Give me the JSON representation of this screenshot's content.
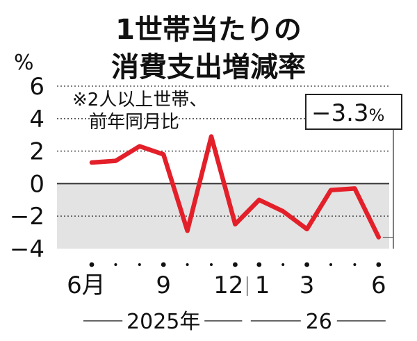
{
  "chart_data": {
    "type": "line",
    "title_lines": [
      "1世帯当たりの",
      "消費支出増減率"
    ],
    "unit": "%",
    "note_lines": [
      "※2人以上世帯、",
      "前年同月比"
    ],
    "callout": {
      "value": "−3.3",
      "unit": "%"
    },
    "ylim": [
      -4,
      6
    ],
    "yticks": [
      {
        "value": 6,
        "label": "6"
      },
      {
        "value": 4,
        "label": "4"
      },
      {
        "value": 2,
        "label": "2"
      },
      {
        "value": 0,
        "label": "0"
      },
      {
        "value": -2,
        "label": "−2"
      },
      {
        "value": -4,
        "label": "−4"
      }
    ],
    "x_tick_labels": [
      {
        "index": 0,
        "label": "6月"
      },
      {
        "index": 3,
        "label": "9"
      },
      {
        "index": 6,
        "label": "12"
      },
      {
        "index": 7,
        "label": "1"
      },
      {
        "index": 9,
        "label": "3"
      },
      {
        "index": 12,
        "label": "6"
      }
    ],
    "year_groups": [
      {
        "label": "2025年",
        "start": 0,
        "end": 6
      },
      {
        "label": "26",
        "start": 7,
        "end": 12
      }
    ],
    "series": [
      {
        "color": "#e3202a",
        "values": [
          1.3,
          1.4,
          2.3,
          1.8,
          -2.9,
          2.9,
          -2.5,
          -1.0,
          -1.7,
          -2.8,
          -0.4,
          -0.3,
          -3.3
        ]
      }
    ],
    "negative_region_color": "#e3e3e3"
  }
}
